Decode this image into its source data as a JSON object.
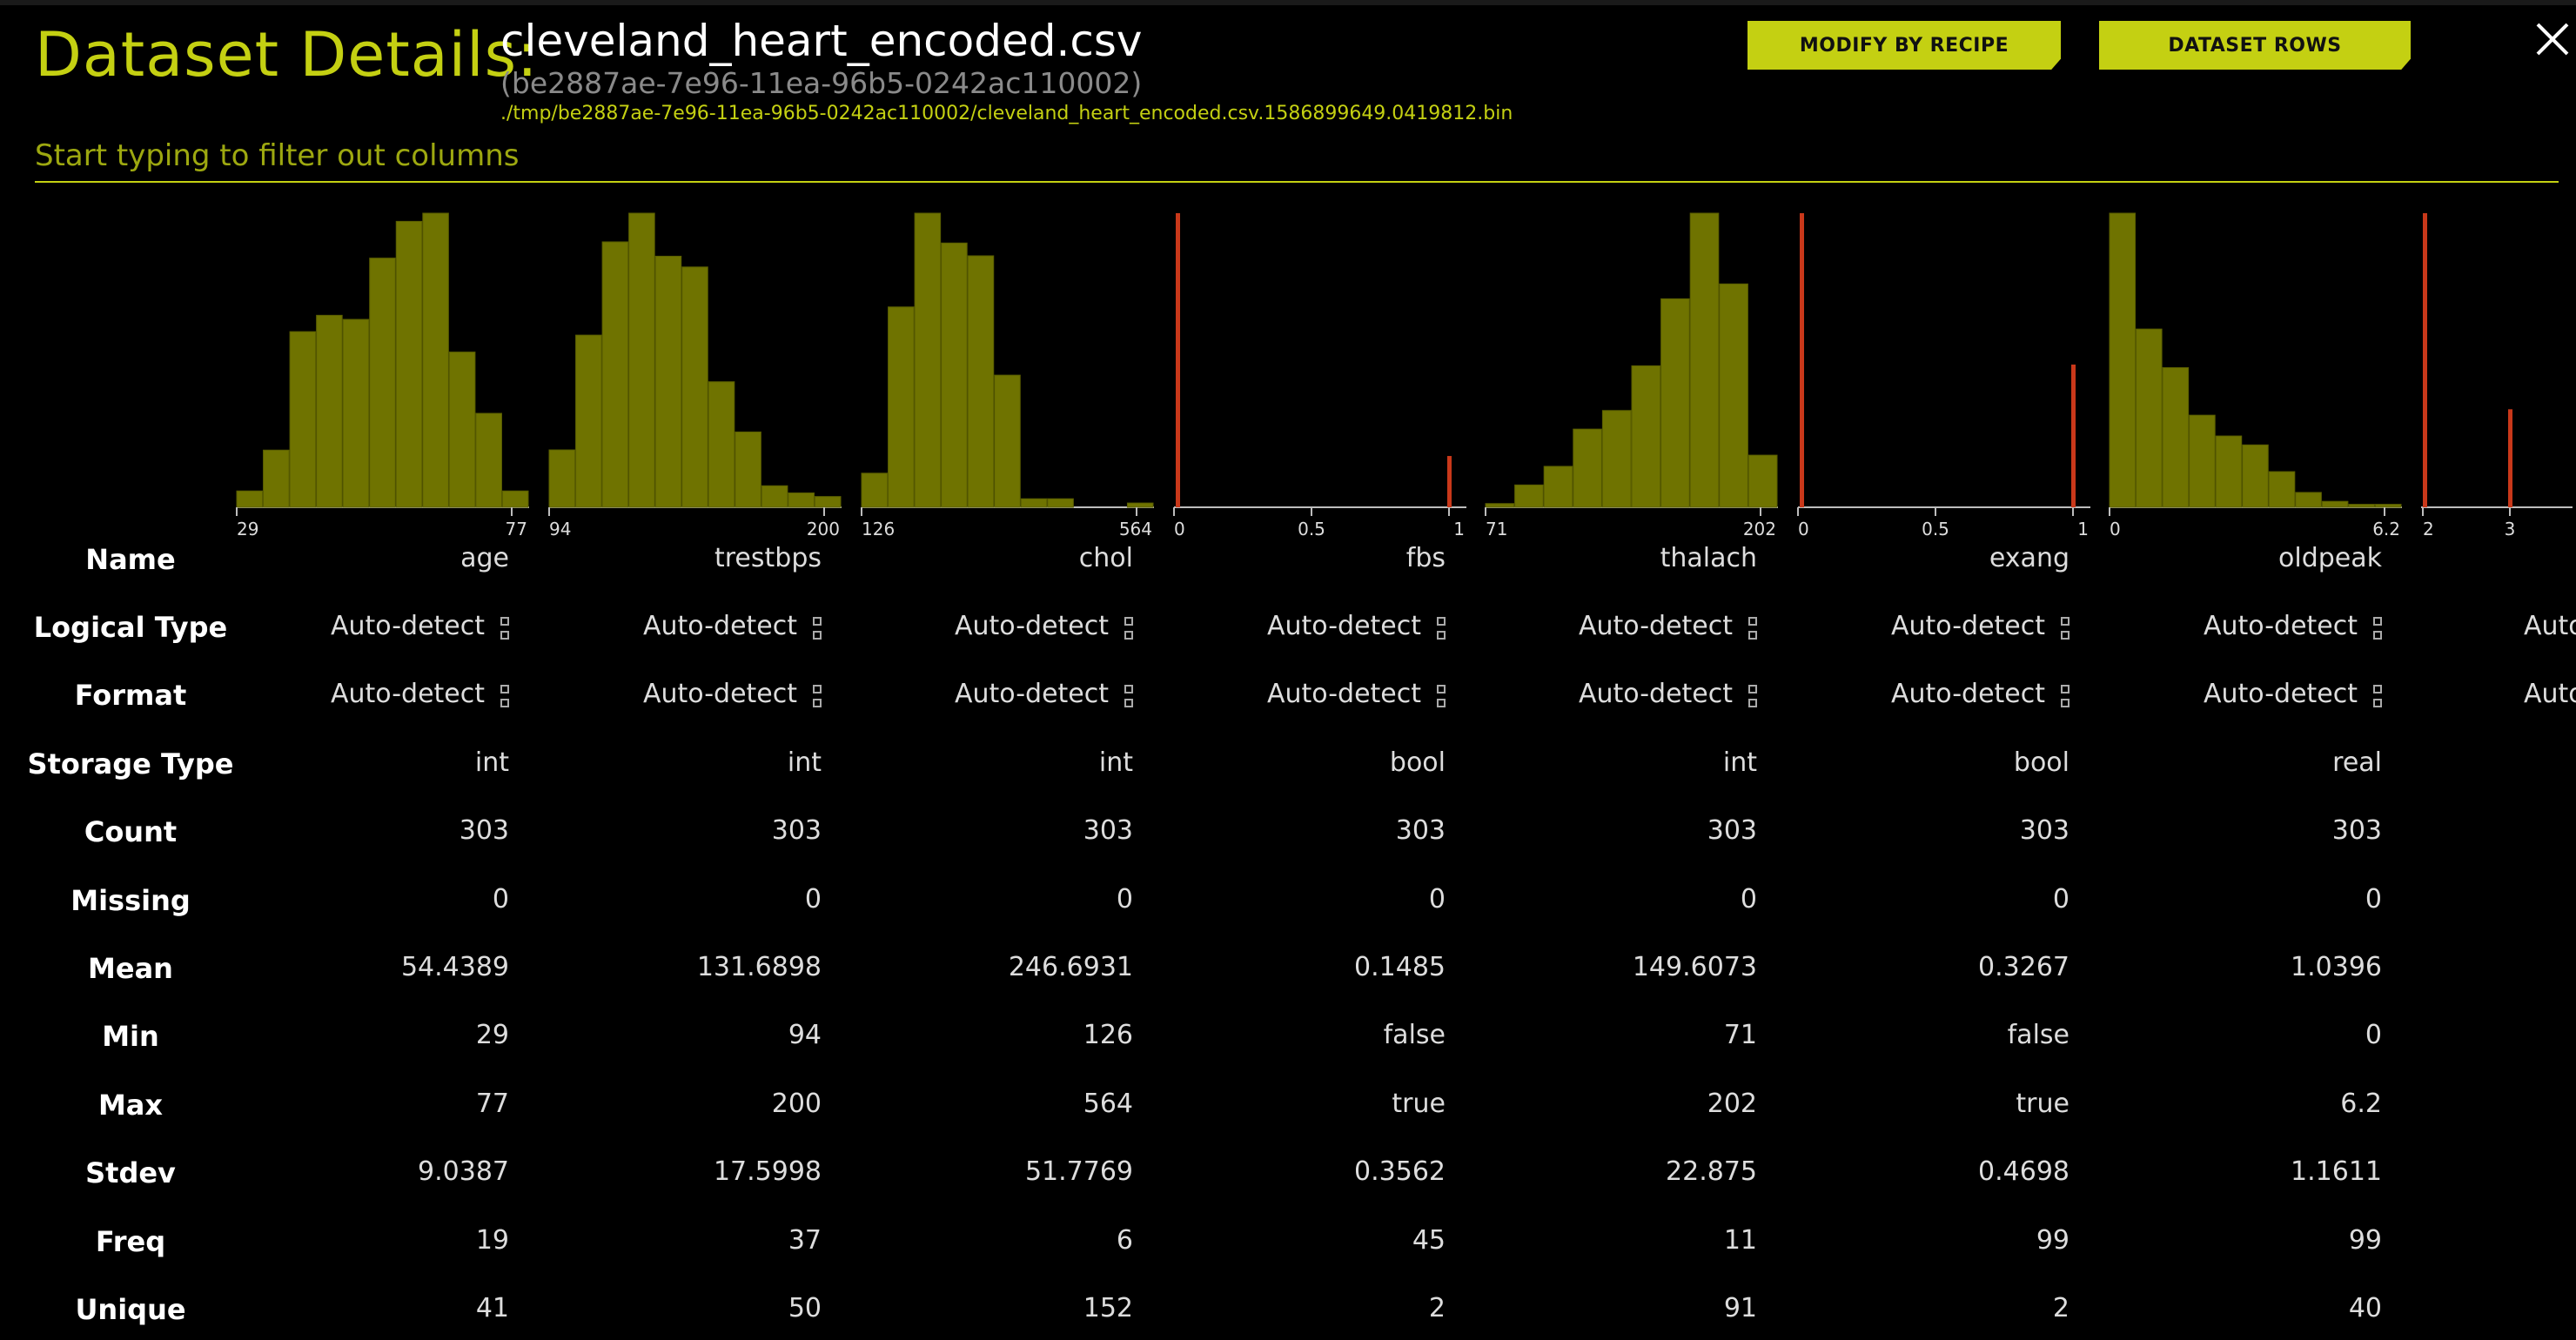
{
  "header": {
    "title_label": "Dataset Details:",
    "dataset_name": "cleveland_heart_encoded.csv",
    "dataset_id": "(be2887ae-7e96-11ea-96b5-0242ac110002)",
    "dataset_path": "./tmp/be2887ae-7e96-11ea-96b5-0242ac110002/cleveland_heart_encoded.csv.1586899649.0419812.bin",
    "modify_button": "MODIFY BY RECIPE",
    "rows_button": "DATASET ROWS",
    "close_icon": "close-icon"
  },
  "filter": {
    "placeholder": "Start typing to filter out columns"
  },
  "colors": {
    "accent": "#c4d012",
    "hist_bar": "#6f7300",
    "bool_bar": "#c9381a",
    "background": "#000000"
  },
  "row_labels": {
    "name": "Name",
    "logical_type": "Logical Type",
    "format": "Format",
    "storage_type": "Storage Type",
    "count": "Count",
    "missing": "Missing",
    "mean": "Mean",
    "min": "Min",
    "max": "Max",
    "stdev": "Stdev",
    "freq": "Freq",
    "unique": "Unique"
  },
  "columns": [
    {
      "name": "age",
      "logical_type": "Auto-detect",
      "format": "Auto-detect",
      "storage_type": "int",
      "count": "303",
      "missing": "0",
      "mean": "54.4389",
      "min": "29",
      "max": "77",
      "stdev": "9.0387",
      "freq": "19",
      "unique": "41"
    },
    {
      "name": "trestbps",
      "logical_type": "Auto-detect",
      "format": "Auto-detect",
      "storage_type": "int",
      "count": "303",
      "missing": "0",
      "mean": "131.6898",
      "min": "94",
      "max": "200",
      "stdev": "17.5998",
      "freq": "37",
      "unique": "50"
    },
    {
      "name": "chol",
      "logical_type": "Auto-detect",
      "format": "Auto-detect",
      "storage_type": "int",
      "count": "303",
      "missing": "0",
      "mean": "246.6931",
      "min": "126",
      "max": "564",
      "stdev": "51.7769",
      "freq": "6",
      "unique": "152"
    },
    {
      "name": "fbs",
      "logical_type": "Auto-detect",
      "format": "Auto-detect",
      "storage_type": "bool",
      "count": "303",
      "missing": "0",
      "mean": "0.1485",
      "min": "false",
      "max": "true",
      "stdev": "0.3562",
      "freq": "45",
      "unique": "2"
    },
    {
      "name": "thalach",
      "logical_type": "Auto-detect",
      "format": "Auto-detect",
      "storage_type": "int",
      "count": "303",
      "missing": "0",
      "mean": "149.6073",
      "min": "71",
      "max": "202",
      "stdev": "22.875",
      "freq": "11",
      "unique": "91"
    },
    {
      "name": "exang",
      "logical_type": "Auto-detect",
      "format": "Auto-detect",
      "storage_type": "bool",
      "count": "303",
      "missing": "0",
      "mean": "0.3267",
      "min": "false",
      "max": "true",
      "stdev": "0.4698",
      "freq": "99",
      "unique": "2"
    },
    {
      "name": "oldpeak",
      "logical_type": "Auto-detect",
      "format": "Auto-detect",
      "storage_type": "real",
      "count": "303",
      "missing": "0",
      "mean": "1.0396",
      "min": "0",
      "max": "6.2",
      "stdev": "1.1611",
      "freq": "99",
      "unique": "40"
    },
    {
      "name": "",
      "logical_type": "Auto-detect",
      "format": "Auto-detect",
      "storage_type": "",
      "count": "",
      "missing": "",
      "mean": "",
      "min": "",
      "max": "",
      "stdev": "",
      "freq": "",
      "unique": ""
    }
  ],
  "chart_data": [
    {
      "type": "bar",
      "column": "age",
      "xlim": [
        29,
        77
      ],
      "ticks": [
        "29",
        "77"
      ],
      "values": [
        4,
        14,
        43,
        47,
        46,
        61,
        70,
        72,
        38,
        23,
        4
      ]
    },
    {
      "type": "bar",
      "column": "trestbps",
      "xlim": [
        94,
        200
      ],
      "ticks": [
        "94",
        "200"
      ],
      "values": [
        16,
        48,
        74,
        82,
        70,
        67,
        35,
        21,
        6,
        4,
        3
      ]
    },
    {
      "type": "bar",
      "column": "chol",
      "xlim": [
        126,
        564
      ],
      "ticks": [
        "126",
        "564"
      ],
      "values": [
        8,
        47,
        69,
        62,
        59,
        31,
        2,
        2,
        0,
        0,
        1
      ]
    },
    {
      "type": "bar",
      "column": "fbs",
      "bool": true,
      "xlim": [
        0,
        1
      ],
      "ticks": [
        "0",
        "0.5",
        "1"
      ],
      "values": [
        258,
        45
      ]
    },
    {
      "type": "bar",
      "column": "thalach",
      "xlim": [
        71,
        202
      ],
      "ticks": [
        "71",
        "202"
      ],
      "values": [
        1,
        6,
        11,
        21,
        26,
        38,
        56,
        79,
        60,
        14
      ]
    },
    {
      "type": "bar",
      "column": "exang",
      "bool": true,
      "xlim": [
        0,
        1
      ],
      "ticks": [
        "0",
        "0.5",
        "1"
      ],
      "values": [
        204,
        99
      ]
    },
    {
      "type": "bar",
      "column": "oldpeak",
      "xlim": [
        0,
        6.2
      ],
      "ticks": [
        "0",
        "6.2"
      ],
      "values": [
        99,
        60,
        47,
        31,
        24,
        21,
        12,
        5,
        2,
        1,
        1
      ]
    },
    {
      "type": "bar",
      "column": "",
      "bool": true,
      "xlim": [
        2,
        3
      ],
      "ticks": [
        "2",
        "3"
      ],
      "values": [
        3,
        1
      ]
    }
  ]
}
